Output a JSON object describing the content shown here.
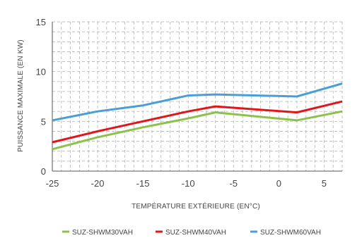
{
  "chart_data": {
    "type": "line",
    "title": "",
    "xlabel": "TEMPÉRATURE EXTÉRIEURE (EN°C)",
    "ylabel": "PUISSANCE MAXIMALE (EN KW)",
    "xlim": [
      -25,
      7
    ],
    "ylim": [
      0,
      15
    ],
    "xticks": [
      -25,
      -20,
      -15,
      -10,
      -5,
      0,
      5
    ],
    "yticks": [
      0,
      5,
      10,
      15
    ],
    "grid": true,
    "legend_position": "bottom",
    "series": [
      {
        "name": "SUZ-SHWM30VAH",
        "color": "#8bc34a",
        "x": [
          -25,
          -20,
          -15,
          -10,
          -7,
          2,
          7
        ],
        "y": [
          2.2,
          3.4,
          4.4,
          5.3,
          5.9,
          5.1,
          6.0
        ]
      },
      {
        "name": "SUZ-SHWM40VAH",
        "color": "#e0161b",
        "x": [
          -25,
          -20,
          -15,
          -10,
          -7,
          2,
          7
        ],
        "y": [
          2.9,
          4.0,
          5.0,
          6.0,
          6.5,
          5.9,
          7.0
        ]
      },
      {
        "name": "SUZ-SHWM60VAH",
        "color": "#4a9ed8",
        "x": [
          -25,
          -20,
          -15,
          -10,
          -7,
          2,
          7
        ],
        "y": [
          5.1,
          6.0,
          6.6,
          7.6,
          7.7,
          7.5,
          8.8
        ]
      }
    ]
  }
}
